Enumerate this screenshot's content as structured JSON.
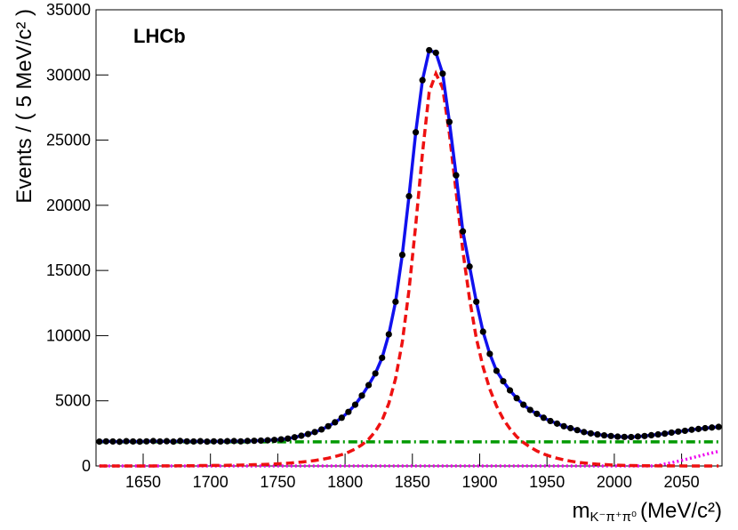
{
  "chart_data": {
    "type": "scatter",
    "annotation": "LHCb",
    "y_label": "Events / ( 5 MeV/c² )",
    "x_label": "m",
    "x_label_subscript": "K⁻π⁺π⁰",
    "x_label_unit": "(MeV/c²)",
    "xlim": [
      1615,
      2080
    ],
    "ylim": [
      0,
      35000
    ],
    "xticks": [
      1650,
      1700,
      1750,
      1800,
      1850,
      1900,
      1950,
      2000,
      2050
    ],
    "yticks": [
      0,
      5000,
      10000,
      15000,
      20000,
      25000,
      30000,
      35000
    ],
    "x": [
      1617.5,
      1622.5,
      1627.5,
      1632.5,
      1637.5,
      1642.5,
      1647.5,
      1652.5,
      1657.5,
      1662.5,
      1667.5,
      1672.5,
      1677.5,
      1682.5,
      1687.5,
      1692.5,
      1697.5,
      1702.5,
      1707.5,
      1712.5,
      1717.5,
      1722.5,
      1727.5,
      1732.5,
      1737.5,
      1742.5,
      1747.5,
      1752.5,
      1757.5,
      1762.5,
      1767.5,
      1772.5,
      1777.5,
      1782.5,
      1787.5,
      1792.5,
      1797.5,
      1802.5,
      1807.5,
      1812.5,
      1817.5,
      1822.5,
      1827.5,
      1832.5,
      1837.5,
      1842.5,
      1847.5,
      1852.5,
      1857.5,
      1862.5,
      1867.5,
      1872.5,
      1877.5,
      1882.5,
      1887.5,
      1892.5,
      1897.5,
      1902.5,
      1907.5,
      1912.5,
      1917.5,
      1922.5,
      1927.5,
      1932.5,
      1937.5,
      1942.5,
      1947.5,
      1952.5,
      1957.5,
      1962.5,
      1967.5,
      1972.5,
      1977.5,
      1982.5,
      1987.5,
      1992.5,
      1997.5,
      2002.5,
      2007.5,
      2012.5,
      2017.5,
      2022.5,
      2027.5,
      2032.5,
      2037.5,
      2042.5,
      2047.5,
      2052.5,
      2057.5,
      2062.5,
      2067.5,
      2072.5,
      2077.5
    ],
    "series": [
      {
        "style": "dash-dot",
        "color": "#009900",
        "values": [
          1850,
          1850,
          1850,
          1850,
          1850,
          1850,
          1850,
          1850,
          1850,
          1850,
          1850,
          1850,
          1850,
          1850,
          1850,
          1850,
          1850,
          1850,
          1850,
          1850,
          1850,
          1850,
          1850,
          1850,
          1850,
          1850,
          1850,
          1850,
          1850,
          1850,
          1850,
          1850,
          1850,
          1850,
          1850,
          1850,
          1850,
          1850,
          1850,
          1850,
          1850,
          1850,
          1850,
          1850,
          1850,
          1850,
          1850,
          1850,
          1850,
          1850,
          1850,
          1850,
          1850,
          1850,
          1850,
          1850,
          1850,
          1850,
          1850,
          1850,
          1850,
          1850,
          1850,
          1850,
          1850,
          1850,
          1850,
          1850,
          1850,
          1850,
          1850,
          1850,
          1850,
          1850,
          1850,
          1850,
          1850,
          1850,
          1850,
          1850,
          1850,
          1850,
          1850,
          1850,
          1850,
          1850,
          1850,
          1850,
          1850,
          1850,
          1850,
          1850,
          1850
        ]
      },
      {
        "style": "dotted",
        "color": "#ee00ee",
        "values": [
          0,
          0,
          0,
          0,
          0,
          0,
          0,
          0,
          0,
          0,
          0,
          0,
          0,
          0,
          0,
          0,
          0,
          0,
          0,
          0,
          0,
          0,
          0,
          0,
          0,
          0,
          0,
          0,
          0,
          0,
          0,
          0,
          0,
          0,
          0,
          0,
          0,
          0,
          0,
          0,
          0,
          0,
          0,
          0,
          0,
          0,
          0,
          0,
          0,
          0,
          0,
          0,
          0,
          0,
          0,
          0,
          0,
          0,
          0,
          0,
          0,
          0,
          0,
          0,
          0,
          0,
          0,
          0,
          0,
          0,
          0,
          0,
          0,
          0,
          0,
          0,
          0,
          0,
          0,
          0,
          0,
          0,
          0,
          50,
          150,
          250,
          370,
          490,
          620,
          750,
          880,
          1000,
          1120
        ]
      },
      {
        "style": "dashed",
        "color": "#ee1111",
        "values": [
          0,
          0,
          0,
          0,
          0,
          0,
          0,
          0,
          0,
          10,
          10,
          10,
          20,
          20,
          20,
          30,
          30,
          40,
          40,
          50,
          60,
          70,
          80,
          100,
          110,
          130,
          150,
          180,
          210,
          250,
          300,
          350,
          420,
          500,
          600,
          720,
          870,
          1060,
          1300,
          1620,
          2050,
          2650,
          3500,
          4800,
          6700,
          9500,
          13500,
          18500,
          24000,
          28700,
          30100,
          29000,
          25500,
          21000,
          16500,
          12800,
          9800,
          7600,
          5900,
          4600,
          3600,
          2850,
          2250,
          1800,
          1450,
          1150,
          920,
          740,
          590,
          470,
          370,
          290,
          230,
          180,
          140,
          110,
          80,
          60,
          45,
          35,
          25,
          20,
          15,
          10,
          8,
          6,
          5,
          4,
          3,
          2,
          2,
          1,
          1
        ]
      },
      {
        "style": "solid",
        "color": "#1111ee",
        "values": [
          1870,
          1890,
          1880,
          1860,
          1900,
          1880,
          1870,
          1890,
          1910,
          1880,
          1900,
          1870,
          1920,
          1890,
          1880,
          1900,
          1870,
          1890,
          1880,
          1900,
          1910,
          1890,
          1920,
          1930,
          1950,
          1970,
          2000,
          2040,
          2100,
          2200,
          2320,
          2450,
          2600,
          2800,
          3050,
          3350,
          3700,
          4150,
          4700,
          5400,
          6200,
          7100,
          8300,
          10100,
          12600,
          16200,
          20700,
          25600,
          29600,
          31900,
          31700,
          30100,
          26400,
          22300,
          18000,
          15300,
          12600,
          10300,
          8600,
          7300,
          6500,
          5800,
          5200,
          4700,
          4300,
          4000,
          3700,
          3450,
          3250,
          3050,
          2900,
          2750,
          2600,
          2500,
          2420,
          2350,
          2300,
          2250,
          2230,
          2220,
          2260,
          2300,
          2360,
          2420,
          2480,
          2560,
          2640,
          2700,
          2780,
          2840,
          2900,
          2950,
          3000
        ]
      },
      {
        "style": "points",
        "color": "#000000",
        "values": [
          1870,
          1890,
          1880,
          1860,
          1900,
          1880,
          1870,
          1890,
          1910,
          1880,
          1900,
          1870,
          1920,
          1890,
          1880,
          1900,
          1870,
          1890,
          1880,
          1900,
          1910,
          1890,
          1920,
          1930,
          1950,
          1970,
          2000,
          2040,
          2100,
          2200,
          2320,
          2450,
          2600,
          2800,
          3050,
          3350,
          3700,
          4150,
          4700,
          5400,
          6200,
          7100,
          8300,
          10100,
          12600,
          16200,
          20700,
          25600,
          29600,
          31900,
          31700,
          30100,
          26400,
          22300,
          18000,
          15300,
          12600,
          10300,
          8600,
          7300,
          6500,
          5800,
          5200,
          4700,
          4300,
          4000,
          3700,
          3450,
          3250,
          3050,
          2900,
          2750,
          2600,
          2500,
          2420,
          2350,
          2300,
          2250,
          2230,
          2220,
          2260,
          2300,
          2360,
          2420,
          2480,
          2560,
          2640,
          2700,
          2780,
          2840,
          2900,
          2950,
          3000
        ]
      }
    ]
  }
}
